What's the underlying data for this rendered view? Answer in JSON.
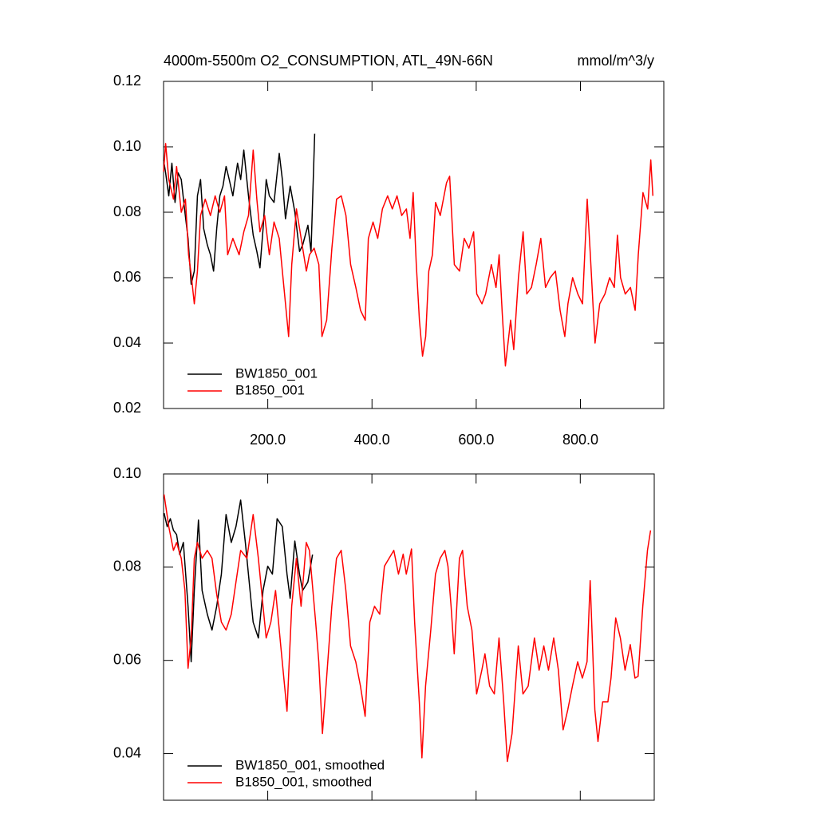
{
  "chart_data": [
    {
      "type": "line",
      "title": "4000m-5500m O2_CONSUMPTION, ATL_49N-66N",
      "units": "mmol/m^3/y",
      "xlim": [
        0,
        960
      ],
      "ylim": [
        0.02,
        0.12
      ],
      "xticks": [
        {
          "value": 200,
          "label": "200.0"
        },
        {
          "value": 400,
          "label": "400.0"
        },
        {
          "value": 600,
          "label": "600.0"
        },
        {
          "value": 800,
          "label": "800.0"
        }
      ],
      "yticks": [
        0.02,
        0.04,
        0.06,
        0.08,
        {
          "value": 0.1,
          "label": "0.10"
        },
        0.12
      ],
      "xtick_labels": true,
      "legend": "lower left",
      "series": [
        {
          "name": "BW1850_001",
          "color": "#000000",
          "x": [
            0,
            4,
            10,
            16,
            22,
            28,
            34,
            41,
            47,
            53,
            59,
            65,
            71,
            77,
            84,
            90,
            96,
            102,
            108,
            114,
            120,
            126,
            133,
            142,
            148,
            154,
            163,
            172,
            179,
            185,
            191,
            197,
            203,
            212,
            222,
            228,
            234,
            243,
            252,
            261,
            267,
            277,
            283,
            290
          ],
          "values": [
            0.096,
            0.092,
            0.085,
            0.095,
            0.083,
            0.092,
            0.09,
            0.08,
            0.072,
            0.058,
            0.062,
            0.085,
            0.09,
            0.075,
            0.07,
            0.067,
            0.062,
            0.075,
            0.085,
            0.088,
            0.094,
            0.09,
            0.085,
            0.095,
            0.09,
            0.099,
            0.085,
            0.073,
            0.068,
            0.063,
            0.075,
            0.09,
            0.085,
            0.083,
            0.098,
            0.09,
            0.078,
            0.088,
            0.08,
            0.068,
            0.07,
            0.076,
            0.068,
            0.104
          ]
        },
        {
          "name": "B1850_001",
          "color": "#ff0000",
          "x": [
            0,
            4,
            10,
            19,
            25,
            34,
            42,
            48,
            53,
            59,
            65,
            71,
            80,
            90,
            99,
            108,
            117,
            123,
            133,
            145,
            154,
            163,
            172,
            179,
            185,
            194,
            203,
            212,
            222,
            231,
            240,
            246,
            255,
            264,
            274,
            280,
            289,
            298,
            304,
            313,
            323,
            332,
            341,
            350,
            359,
            369,
            378,
            387,
            393,
            402,
            411,
            420,
            430,
            439,
            448,
            457,
            466,
            473,
            479,
            485,
            491,
            497,
            503,
            509,
            516,
            522,
            531,
            537,
            543,
            549,
            558,
            568,
            577,
            586,
            595,
            601,
            611,
            618,
            629,
            638,
            644,
            650,
            656,
            666,
            672,
            681,
            690,
            697,
            706,
            715,
            724,
            733,
            742,
            752,
            761,
            770,
            776,
            785,
            795,
            804,
            813,
            819,
            828,
            837,
            847,
            856,
            865,
            871,
            877,
            886,
            896,
            905,
            911,
            920,
            929,
            935,
            939
          ],
          "values": [
            0.0924,
            0.101,
            0.09,
            0.084,
            0.094,
            0.08,
            0.084,
            0.067,
            0.061,
            0.052,
            0.062,
            0.079,
            0.084,
            0.079,
            0.085,
            0.08,
            0.085,
            0.067,
            0.072,
            0.067,
            0.074,
            0.079,
            0.099,
            0.084,
            0.074,
            0.079,
            0.067,
            0.077,
            0.072,
            0.057,
            0.042,
            0.064,
            0.081,
            0.072,
            0.062,
            0.067,
            0.069,
            0.064,
            0.042,
            0.047,
            0.069,
            0.084,
            0.085,
            0.079,
            0.064,
            0.057,
            0.05,
            0.047,
            0.072,
            0.077,
            0.072,
            0.081,
            0.085,
            0.081,
            0.085,
            0.079,
            0.081,
            0.072,
            0.086,
            0.064,
            0.047,
            0.036,
            0.042,
            0.062,
            0.067,
            0.083,
            0.079,
            0.084,
            0.089,
            0.091,
            0.064,
            0.062,
            0.072,
            0.069,
            0.074,
            0.055,
            0.052,
            0.055,
            0.064,
            0.057,
            0.067,
            0.049,
            0.033,
            0.047,
            0.038,
            0.06,
            0.074,
            0.055,
            0.057,
            0.064,
            0.072,
            0.057,
            0.06,
            0.062,
            0.05,
            0.042,
            0.052,
            0.06,
            0.055,
            0.052,
            0.084,
            0.067,
            0.04,
            0.052,
            0.055,
            0.06,
            0.057,
            0.073,
            0.06,
            0.055,
            0.057,
            0.05,
            0.067,
            0.086,
            0.081,
            0.096,
            0.085
          ]
        }
      ]
    },
    {
      "type": "line",
      "xlim": [
        0,
        942
      ],
      "ylim": [
        0.03,
        0.1
      ],
      "xticks": [
        200,
        400,
        600,
        800
      ],
      "yticks": [
        0.04,
        0.06,
        0.08,
        {
          "value": 0.1,
          "label": "0.10"
        }
      ],
      "xtick_labels": false,
      "legend": "lower left",
      "series": [
        {
          "name": "BW1850_001, smoothed",
          "color": "#000000",
          "x": [
            1,
            7,
            13,
            19,
            25,
            31,
            38,
            47,
            53,
            59,
            67,
            74,
            84,
            93,
            102,
            111,
            120,
            130,
            139,
            148,
            157,
            166,
            172,
            182,
            191,
            200,
            209,
            218,
            228,
            237,
            243,
            252,
            261,
            267,
            277,
            286
          ],
          "values": [
            0.0916,
            0.0887,
            0.0904,
            0.0879,
            0.087,
            0.0827,
            0.0853,
            0.0716,
            0.0597,
            0.075,
            0.0901,
            0.075,
            0.0699,
            0.0665,
            0.0716,
            0.0785,
            0.0913,
            0.0853,
            0.0887,
            0.0944,
            0.0853,
            0.075,
            0.0682,
            0.0648,
            0.075,
            0.0802,
            0.0785,
            0.0904,
            0.0887,
            0.0785,
            0.0733,
            0.0856,
            0.0785,
            0.075,
            0.0768,
            0.0827
          ]
        },
        {
          "name": "B1850_001, smoothed",
          "color": "#ff0000",
          "x": [
            1,
            10,
            19,
            25,
            34,
            41,
            47,
            53,
            59,
            65,
            74,
            84,
            93,
            102,
            111,
            120,
            130,
            139,
            148,
            160,
            172,
            182,
            191,
            197,
            206,
            215,
            225,
            237,
            246,
            255,
            264,
            274,
            280,
            292,
            298,
            305,
            313,
            323,
            332,
            341,
            350,
            359,
            369,
            378,
            387,
            396,
            405,
            415,
            424,
            433,
            442,
            451,
            460,
            466,
            476,
            482,
            491,
            496,
            503,
            513,
            522,
            531,
            540,
            546,
            552,
            558,
            568,
            574,
            583,
            592,
            601,
            611,
            617,
            626,
            635,
            644,
            653,
            660,
            669,
            681,
            690,
            700,
            712,
            721,
            730,
            739,
            749,
            758,
            767,
            776,
            785,
            795,
            804,
            813,
            819,
            828,
            834,
            843,
            853,
            859,
            868,
            877,
            886,
            896,
            905,
            911,
            920,
            929,
            935
          ],
          "values": [
            0.0956,
            0.0887,
            0.0836,
            0.0853,
            0.0819,
            0.075,
            0.0583,
            0.0648,
            0.0819,
            0.0853,
            0.0819,
            0.0836,
            0.0819,
            0.0742,
            0.0682,
            0.0665,
            0.0699,
            0.0768,
            0.0836,
            0.0819,
            0.0913,
            0.0819,
            0.0716,
            0.0648,
            0.0682,
            0.075,
            0.0631,
            0.0491,
            0.0716,
            0.0819,
            0.0716,
            0.0853,
            0.0836,
            0.0682,
            0.0597,
            0.0443,
            0.0562,
            0.0716,
            0.0819,
            0.0836,
            0.075,
            0.0631,
            0.0597,
            0.0545,
            0.048,
            0.0682,
            0.0716,
            0.0699,
            0.0802,
            0.0819,
            0.0836,
            0.0785,
            0.0828,
            0.0785,
            0.0839,
            0.0682,
            0.0511,
            0.0391,
            0.0545,
            0.0665,
            0.0785,
            0.0819,
            0.0836,
            0.0802,
            0.0716,
            0.0614,
            0.0819,
            0.0836,
            0.0716,
            0.0665,
            0.0528,
            0.0579,
            0.0614,
            0.0545,
            0.0528,
            0.0648,
            0.0511,
            0.0383,
            0.0443,
            0.0631,
            0.0528,
            0.0545,
            0.0648,
            0.0579,
            0.0631,
            0.0579,
            0.0648,
            0.0579,
            0.0451,
            0.0494,
            0.0545,
            0.0597,
            0.0562,
            0.0597,
            0.0771,
            0.0494,
            0.0426,
            0.0511,
            0.0511,
            0.0562,
            0.0691,
            0.0648,
            0.0579,
            0.0634,
            0.0562,
            0.0566,
            0.0716,
            0.0836,
            0.0879
          ]
        }
      ]
    }
  ]
}
